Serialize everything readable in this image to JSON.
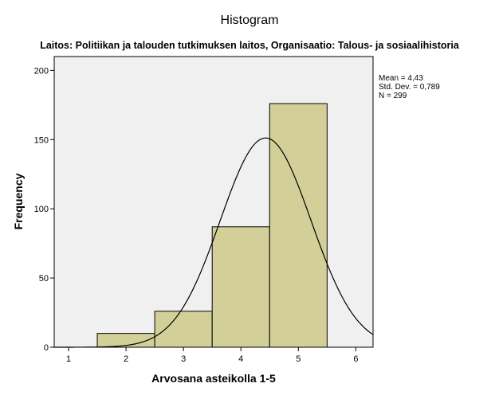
{
  "chart_data": {
    "type": "bar",
    "title": "Histogram",
    "subtitle": "Laitos: Politiikan ja talouden tutkimuksen laitos, Organisaatio: Talous- ja sosiaalihistoria",
    "xlabel": "Arvosana asteikolla 1-5",
    "ylabel": "Frequency",
    "xlim": [
      0.75,
      6.3
    ],
    "ylim": [
      0,
      210
    ],
    "xticks": [
      "1",
      "2",
      "3",
      "4",
      "5",
      "6"
    ],
    "yticks": [
      "0",
      "50",
      "100",
      "150",
      "200"
    ],
    "bins": [
      {
        "from": 1.5,
        "to": 2.5,
        "value": 10
      },
      {
        "from": 2.5,
        "to": 3.5,
        "value": 26
      },
      {
        "from": 3.5,
        "to": 4.5,
        "value": 87
      },
      {
        "from": 4.5,
        "to": 5.5,
        "value": 176
      }
    ],
    "normal_curve": {
      "mean": 4.43,
      "std_dev": 0.789,
      "n": 299,
      "bin_width": 1
    },
    "stats": {
      "mean": "Mean = 4,43",
      "std_dev": "Std. Dev. = 0,789",
      "n": "N = 299"
    },
    "colors": {
      "bar_fill": "#D3CF99",
      "plot_background": "#F0F0F0",
      "curve": "#000000"
    },
    "grid": false
  }
}
